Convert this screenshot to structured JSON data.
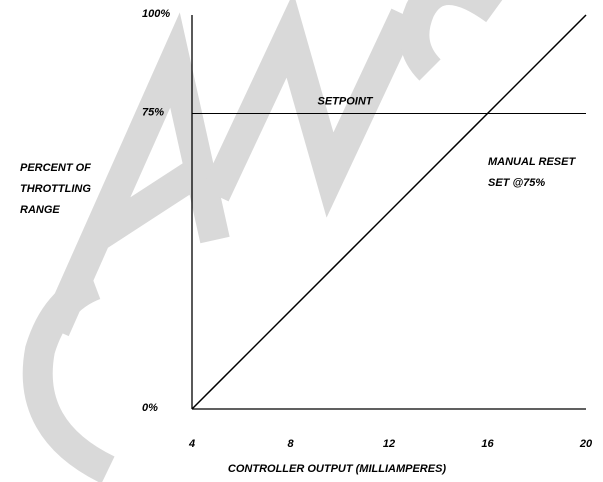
{
  "chart_data": {
    "type": "line",
    "xlabel": "CONTROLLER OUTPUT (MILLIAMPERES)",
    "ylabel_lines": [
      "PERCENT OF",
      "THROTTLING",
      "RANGE"
    ],
    "xlim": [
      4,
      20
    ],
    "ylim": [
      0,
      100
    ],
    "x_ticks": [
      4,
      8,
      12,
      16,
      20
    ],
    "y_ticks": [
      {
        "value": 0,
        "label": "0%"
      },
      {
        "value": 75,
        "label": "75%"
      },
      {
        "value": 100,
        "label": "100%"
      }
    ],
    "series": [
      {
        "x": [
          4,
          20
        ],
        "y": [
          0,
          100
        ],
        "color": "#000000"
      }
    ],
    "setpoint": {
      "value": 75,
      "label": "SETPOINT"
    },
    "annotation_lines": [
      "MANUAL RESET",
      "SET @75%"
    ],
    "watermark": {
      "text": "CANCELLED",
      "color": "#d9d9d9"
    },
    "grid": false
  }
}
